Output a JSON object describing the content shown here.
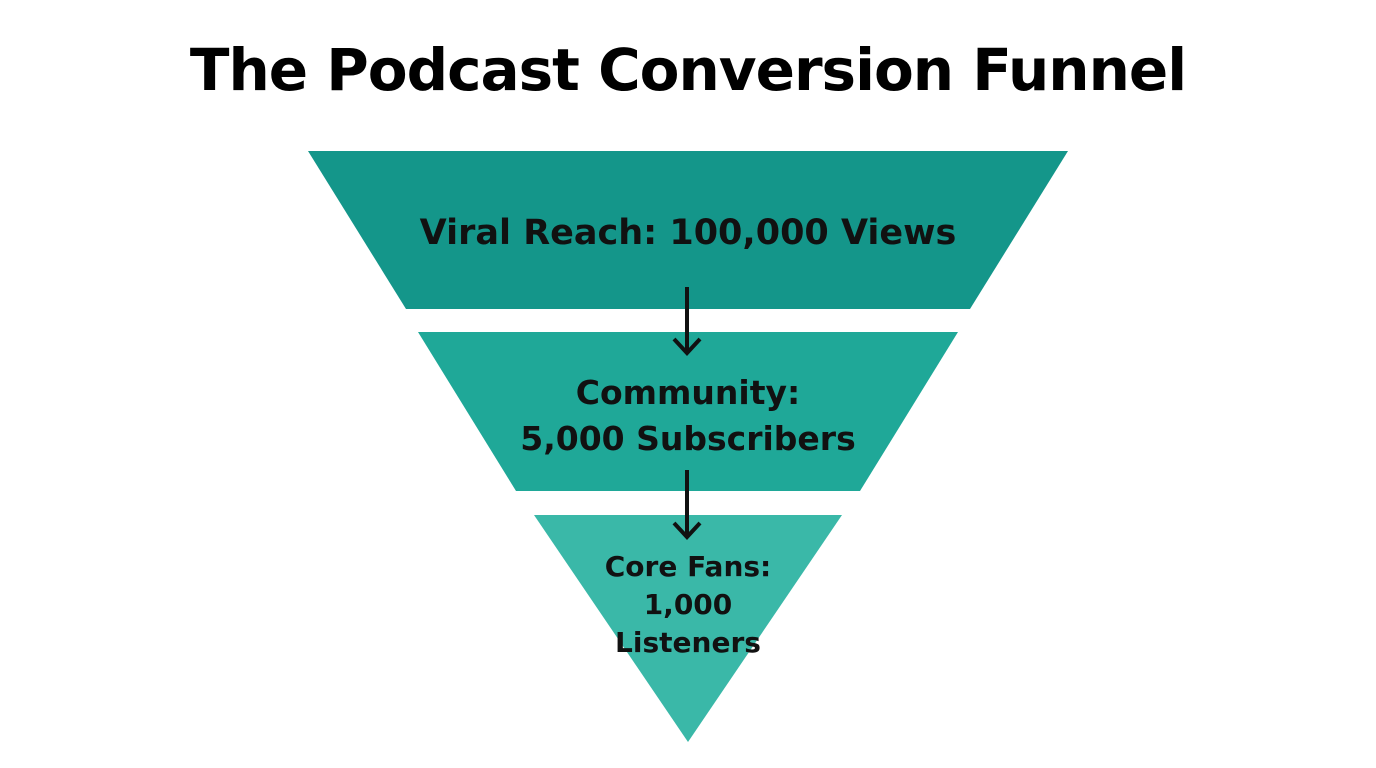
{
  "title": "The Podcast Conversion Funnel",
  "stages": [
    {
      "lines": [
        "Viral Reach: 100,000 Views"
      ],
      "color": "#14968a"
    },
    {
      "lines": [
        "Community:",
        "5,000 Subscribers"
      ],
      "color": "#1fa898"
    },
    {
      "lines": [
        "Core Fans:",
        "1,000",
        "Listeners"
      ],
      "color": "#3ab8a8"
    }
  ]
}
